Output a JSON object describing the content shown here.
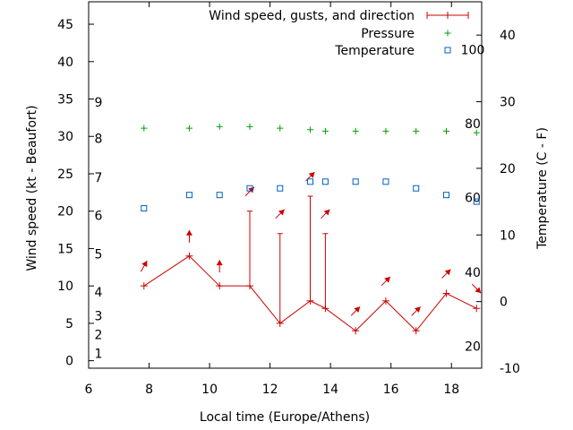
{
  "chart_data": {
    "type": "line",
    "title": "",
    "xlabel": "Local time (Europe/Athens)",
    "ylabel": "Wind speed (kt - Beaufort)",
    "y2label": "Temperature (C - F)",
    "xlim": [
      6,
      19
    ],
    "ylim": [
      -1,
      48
    ],
    "y2lim": [
      -10,
      45
    ],
    "x_ticks": [
      6,
      8,
      10,
      12,
      14,
      16,
      18
    ],
    "y_ticks": [
      0,
      5,
      10,
      15,
      20,
      25,
      30,
      35,
      40,
      45
    ],
    "y2_ticks": [
      -10,
      0,
      10,
      20,
      30,
      40
    ],
    "beaufort_labels": [
      {
        "label": "1",
        "y": 1
      },
      {
        "label": "2",
        "y": 3.5
      },
      {
        "label": "3",
        "y": 6
      },
      {
        "label": "4",
        "y": 9.2
      },
      {
        "label": "5",
        "y": 14.3
      },
      {
        "label": "6",
        "y": 19.4
      },
      {
        "label": "7",
        "y": 24.5
      },
      {
        "label": "8",
        "y": 29.7
      },
      {
        "label": "9",
        "y": 34.6
      }
    ],
    "fahrenheit_labels": [
      {
        "label": "20",
        "y2": -6.7
      },
      {
        "label": "40",
        "y2": 4.4
      },
      {
        "label": "60",
        "y2": 15.6
      },
      {
        "label": "80",
        "y2": 26.7
      },
      {
        "label": "100",
        "y2": 37.8
      }
    ],
    "grid": false,
    "legend_position": "top-right",
    "series": [
      {
        "name": "Wind speed, gusts, and direction",
        "color": "#cc0000",
        "x": [
          7.83,
          9.33,
          10.33,
          11.33,
          12.33,
          13.33,
          13.83,
          14.83,
          15.83,
          16.83,
          17.83,
          18.83
        ],
        "values": [
          10,
          14,
          10,
          10,
          5,
          8,
          7,
          4,
          8,
          4,
          9,
          7
        ],
        "gusts": [
          null,
          null,
          null,
          20,
          17,
          22,
          17,
          null,
          null,
          null,
          null,
          null
        ],
        "direction_deg": [
          210,
          180,
          180,
          225,
          225,
          225,
          225,
          225,
          225,
          225,
          225,
          315
        ]
      },
      {
        "name": "Pressure",
        "color": "#00a000",
        "x": [
          7.83,
          9.33,
          10.33,
          11.33,
          12.33,
          13.33,
          13.83,
          14.83,
          15.83,
          16.83,
          17.83,
          18.83
        ],
        "values": [
          31.1,
          31.1,
          31.3,
          31.3,
          31.1,
          30.9,
          30.7,
          30.7,
          30.7,
          30.7,
          30.7,
          30.5
        ]
      },
      {
        "name": "Temperature",
        "color": "#0060c0",
        "axis": "y2",
        "x": [
          7.83,
          9.33,
          10.33,
          11.33,
          12.33,
          13.33,
          13.83,
          14.83,
          15.83,
          16.83,
          17.83,
          18.83
        ],
        "values": [
          14,
          16,
          16,
          17,
          17,
          18,
          18,
          18,
          18,
          17,
          16,
          15
        ]
      }
    ]
  }
}
